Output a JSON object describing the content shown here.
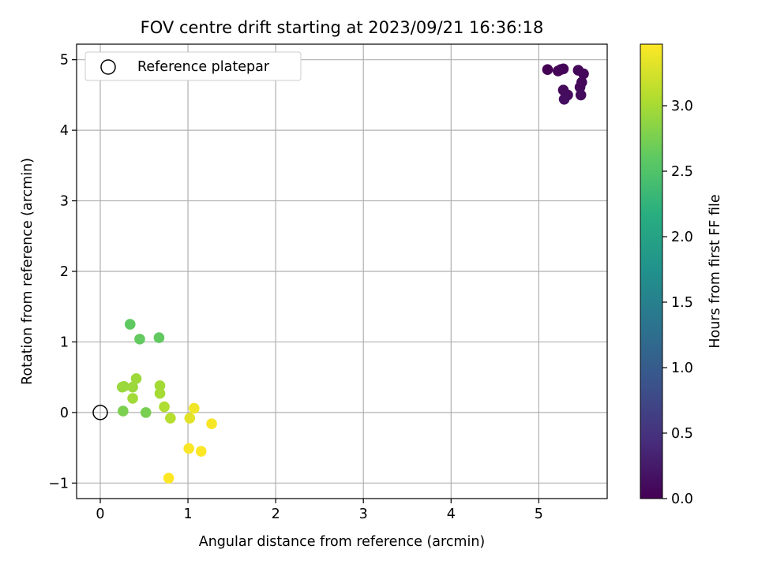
{
  "chart_data": {
    "type": "scatter",
    "title": "FOV centre drift starting at 2023/09/21 16:36:18",
    "xlabel": "Angular distance from reference (arcmin)",
    "ylabel": "Rotation from reference (arcmin)",
    "xlim": [
      -0.27,
      5.78
    ],
    "ylim": [
      -1.22,
      5.22
    ],
    "xticks": [
      "0",
      "1",
      "2",
      "3",
      "4",
      "5"
    ],
    "yticks": [
      "−1",
      "0",
      "1",
      "2",
      "3",
      "4",
      "5"
    ],
    "grid": true,
    "legend": {
      "placement": "top-left",
      "entries": [
        "Reference platepar"
      ]
    },
    "reference_point": {
      "x": 0,
      "y": 0,
      "label": "Reference platepar"
    },
    "colorbar": {
      "label": "Hours from first FF file",
      "colormap": "viridis",
      "range": [
        0,
        3.47
      ],
      "ticks": [
        "0.0",
        "0.5",
        "1.0",
        "1.5",
        "2.0",
        "2.5",
        "3.0"
      ]
    },
    "points": [
      {
        "x": 5.1,
        "y": 4.86,
        "hours": 0.0
      },
      {
        "x": 5.22,
        "y": 4.84,
        "hours": 0.02
      },
      {
        "x": 5.25,
        "y": 4.86,
        "hours": 0.03
      },
      {
        "x": 5.28,
        "y": 4.87,
        "hours": 0.04
      },
      {
        "x": 5.45,
        "y": 4.85,
        "hours": 0.05
      },
      {
        "x": 5.51,
        "y": 4.8,
        "hours": 0.06
      },
      {
        "x": 5.49,
        "y": 4.68,
        "hours": 0.07
      },
      {
        "x": 5.47,
        "y": 4.61,
        "hours": 0.08
      },
      {
        "x": 5.28,
        "y": 4.57,
        "hours": 0.09
      },
      {
        "x": 5.33,
        "y": 4.5,
        "hours": 0.1
      },
      {
        "x": 5.48,
        "y": 4.5,
        "hours": 0.11
      },
      {
        "x": 5.29,
        "y": 4.44,
        "hours": 0.12
      },
      {
        "x": 0.34,
        "y": 1.25,
        "hours": 2.62
      },
      {
        "x": 0.45,
        "y": 1.04,
        "hours": 2.64
      },
      {
        "x": 0.67,
        "y": 1.06,
        "hours": 2.63
      },
      {
        "x": 0.26,
        "y": 0.02,
        "hours": 2.78
      },
      {
        "x": 0.52,
        "y": 0.0,
        "hours": 2.76
      },
      {
        "x": 0.25,
        "y": 0.36,
        "hours": 2.93
      },
      {
        "x": 0.27,
        "y": 0.37,
        "hours": 2.95
      },
      {
        "x": 0.37,
        "y": 0.36,
        "hours": 2.96
      },
      {
        "x": 0.41,
        "y": 0.48,
        "hours": 2.97
      },
      {
        "x": 0.37,
        "y": 0.2,
        "hours": 2.99
      },
      {
        "x": 0.68,
        "y": 0.38,
        "hours": 3.0
      },
      {
        "x": 0.68,
        "y": 0.27,
        "hours": 3.01
      },
      {
        "x": 0.73,
        "y": 0.08,
        "hours": 3.07
      },
      {
        "x": 0.8,
        "y": -0.08,
        "hours": 3.1
      },
      {
        "x": 1.02,
        "y": -0.08,
        "hours": 3.33
      },
      {
        "x": 1.07,
        "y": 0.06,
        "hours": 3.4
      },
      {
        "x": 1.27,
        "y": -0.16,
        "hours": 3.44
      },
      {
        "x": 1.01,
        "y": -0.51,
        "hours": 3.45
      },
      {
        "x": 1.15,
        "y": -0.55,
        "hours": 3.46
      },
      {
        "x": 0.78,
        "y": -0.93,
        "hours": 3.47
      }
    ]
  }
}
